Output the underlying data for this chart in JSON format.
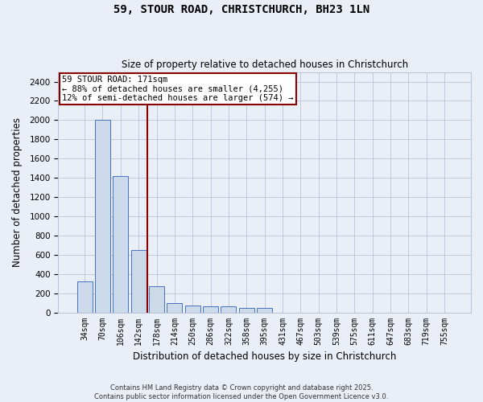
{
  "title_line1": "59, STOUR ROAD, CHRISTCHURCH, BH23 1LN",
  "title_line2": "Size of property relative to detached houses in Christchurch",
  "xlabel": "Distribution of detached houses by size in Christchurch",
  "ylabel": "Number of detached properties",
  "categories": [
    "34sqm",
    "70sqm",
    "106sqm",
    "142sqm",
    "178sqm",
    "214sqm",
    "250sqm",
    "286sqm",
    "322sqm",
    "358sqm",
    "395sqm",
    "431sqm",
    "467sqm",
    "503sqm",
    "539sqm",
    "575sqm",
    "611sqm",
    "647sqm",
    "683sqm",
    "719sqm",
    "755sqm"
  ],
  "values": [
    320,
    2000,
    1420,
    650,
    270,
    95,
    70,
    65,
    65,
    50,
    50,
    0,
    0,
    0,
    0,
    0,
    0,
    0,
    0,
    0,
    0
  ],
  "bar_color": "#ccd9e8",
  "bar_edge_color": "#4472c4",
  "background_color": "#eaeff7",
  "grid_color": "#b8c4d8",
  "vline_color": "#8b0000",
  "annotation_text_line1": "59 STOUR ROAD: 171sqm",
  "annotation_text_line2": "← 88% of detached houses are smaller (4,255)",
  "annotation_text_line3": "12% of semi-detached houses are larger (574) →",
  "annotation_box_color": "#8b0000",
  "annotation_box_fill": "#ffffff",
  "ylim": [
    0,
    2500
  ],
  "yticks": [
    0,
    200,
    400,
    600,
    800,
    1000,
    1200,
    1400,
    1600,
    1800,
    2000,
    2200,
    2400
  ],
  "footer_line1": "Contains HM Land Registry data © Crown copyright and database right 2025.",
  "footer_line2": "Contains public sector information licensed under the Open Government Licence v3.0."
}
